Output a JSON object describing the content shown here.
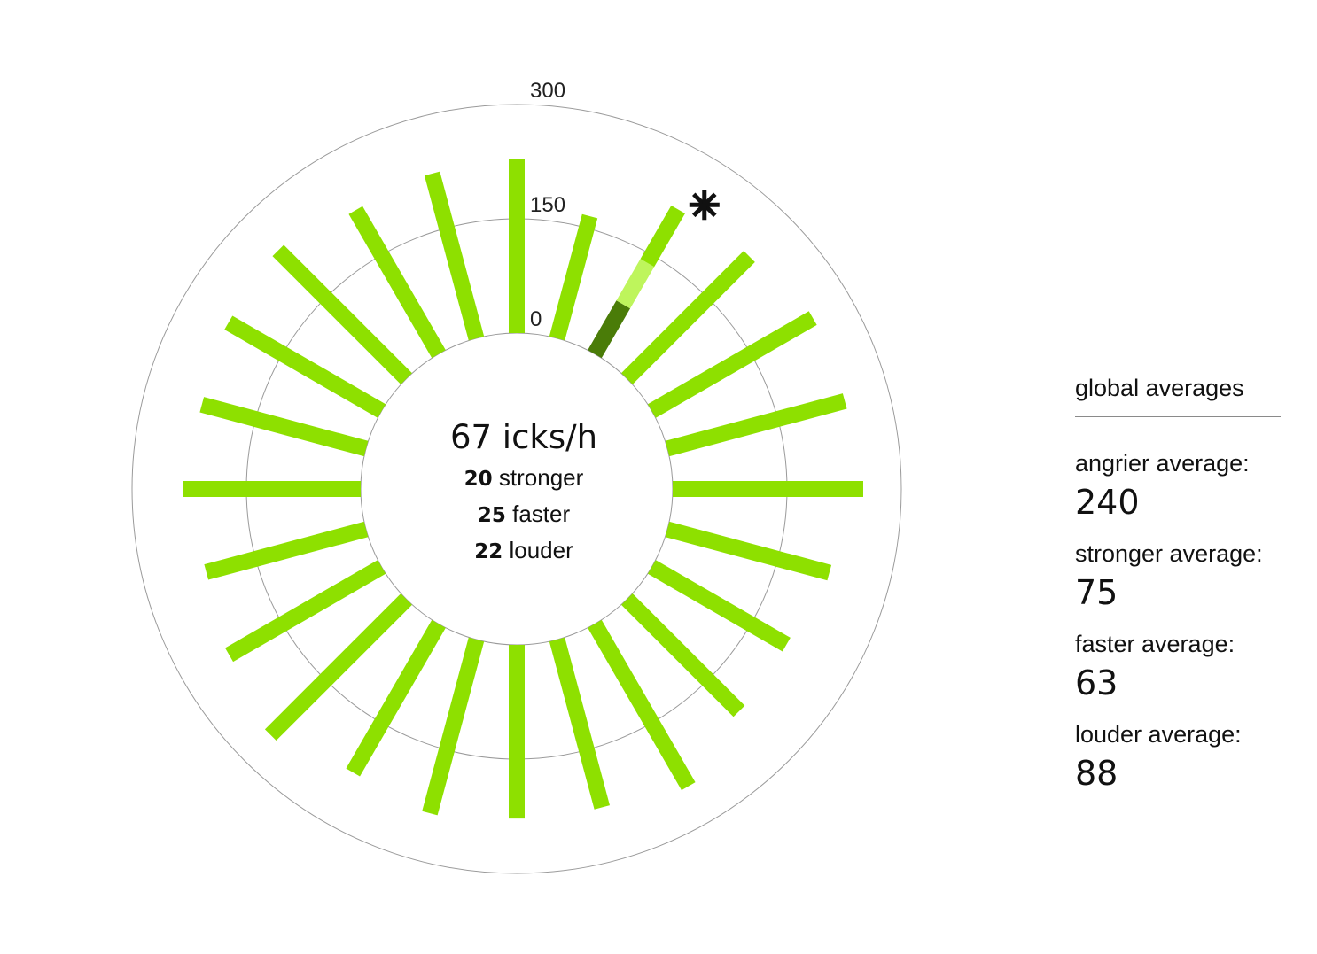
{
  "chart_data": {
    "type": "radial-bar",
    "center": {
      "total_value": "67",
      "total_unit": "icks/h",
      "breakdown": [
        {
          "value": "20",
          "label": "stronger"
        },
        {
          "value": "25",
          "label": "faster"
        },
        {
          "value": "22",
          "label": "louder"
        }
      ]
    },
    "radial_ticks": [
      {
        "value": 0,
        "label": "0"
      },
      {
        "value": 150,
        "label": "150"
      },
      {
        "value": 300,
        "label": "300"
      }
    ],
    "rlim": [
      0,
      300
    ],
    "bar_count": 24,
    "values": [
      228,
      166,
      219,
      227,
      244,
      241,
      250,
      220,
      204,
      208,
      246,
      228,
      228,
      236,
      225,
      252,
      231,
      217,
      233,
      223,
      232,
      238,
      218,
      224
    ],
    "highlight": {
      "index": 2,
      "marker": "asterisk-icon",
      "segments": [
        {
          "name": "dark",
          "value": 75,
          "color": "#4a7c08"
        },
        {
          "name": "light",
          "value": 63,
          "color": "#bef55c"
        },
        {
          "name": "rest",
          "value": 81,
          "color": "#8ee000"
        }
      ]
    },
    "colors": {
      "bar": "#8ee000",
      "highlight_dark": "#4a7c08",
      "highlight_light": "#bef55c",
      "ring": "#9a9a9a"
    }
  },
  "sidebar": {
    "heading": "global averages",
    "stats": [
      {
        "label": "angrier average:",
        "value": "240"
      },
      {
        "label": "stronger average:",
        "value": "75"
      },
      {
        "label": "faster average:",
        "value": "63"
      },
      {
        "label": "louder average:",
        "value": "88"
      }
    ]
  }
}
